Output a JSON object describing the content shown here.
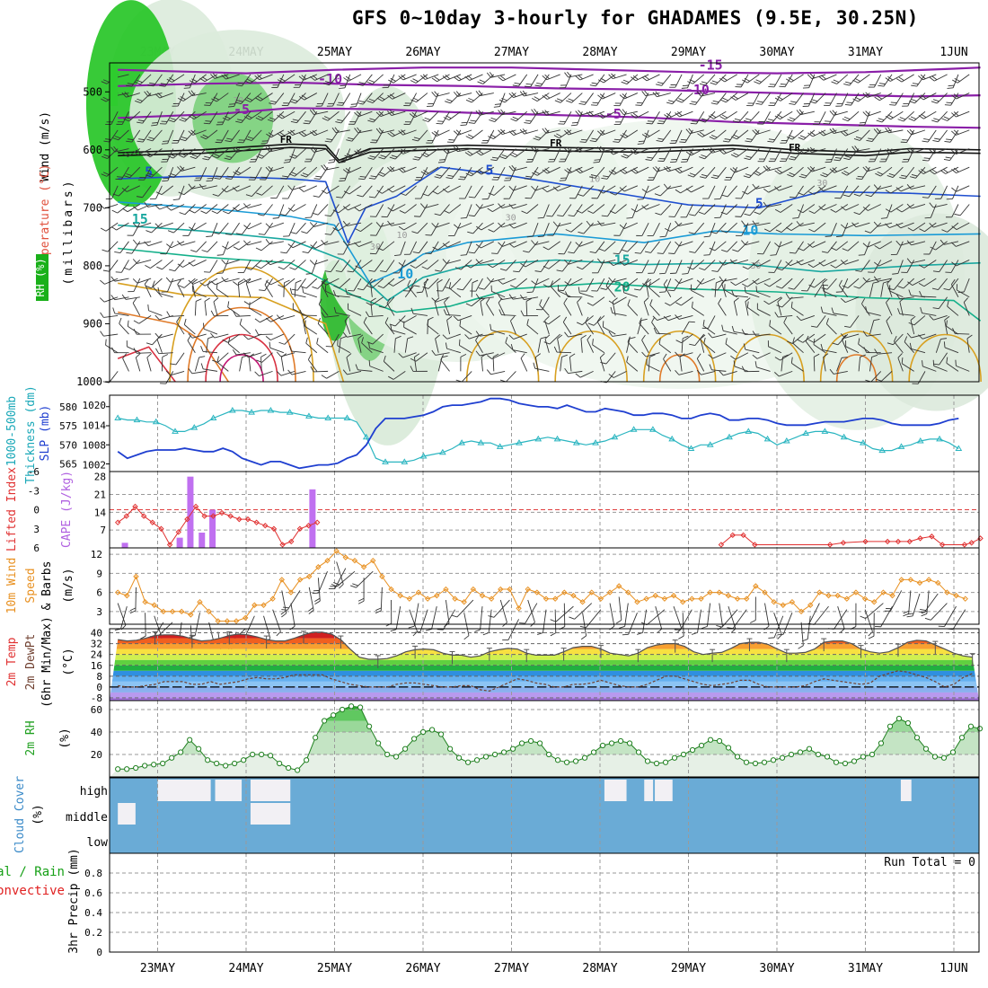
{
  "title": "GFS 0~10day 3-hourly for GHADAMES (9.5E, 30.25N)",
  "chart_data": {
    "type": "meteogram",
    "days": [
      "23MAY",
      "24MAY",
      "25MAY",
      "26MAY",
      "27MAY",
      "28MAY",
      "29MAY",
      "30MAY",
      "31MAY",
      "1JUN"
    ],
    "xlim_days": [
      -0.45,
      9.3
    ],
    "panels": [
      {
        "id": "upper_air",
        "ylabel_parts": [
          "RH (%)",
          "Temperature (°C)",
          "Wind (m/s)"
        ],
        "ylabel_colors": [
          "#2e8b2e",
          "#e0503c",
          "#000000"
        ],
        "axis_label": "(millibars)",
        "ylim": [
          1000,
          450
        ],
        "yticks": [
          500,
          600,
          700,
          800,
          900,
          1000
        ],
        "contour_labels": [
          {
            "text": "-15",
            "day": 6.25,
            "p": 462,
            "color": "#8a1fa8"
          },
          {
            "text": "-10",
            "day": 1.95,
            "p": 486,
            "color": "#8a1fa8"
          },
          {
            "text": "-10",
            "day": 6.1,
            "p": 504,
            "color": "#8a1fa8"
          },
          {
            "text": "-5",
            "day": 0.95,
            "p": 538,
            "color": "#8a1fa8"
          },
          {
            "text": "-5",
            "day": 5.15,
            "p": 546,
            "color": "#8a1fa8"
          },
          {
            "text": "FR",
            "day": 1.45,
            "p": 588,
            "color": "#000000"
          },
          {
            "text": "FR",
            "day": 4.5,
            "p": 594,
            "color": "#000000"
          },
          {
            "text": "FR",
            "day": 7.2,
            "p": 602,
            "color": "#000000"
          },
          {
            "text": "5",
            "day": -0.1,
            "p": 646,
            "color": "#1f4fd0"
          },
          {
            "text": "5",
            "day": 3.75,
            "p": 643,
            "color": "#1f4fd0"
          },
          {
            "text": "5",
            "day": 6.8,
            "p": 700,
            "color": "#1f4fd0"
          },
          {
            "text": "10",
            "day": 6.7,
            "p": 747,
            "color": "#1a9bd6"
          },
          {
            "text": "10",
            "day": 2.8,
            "p": 822,
            "color": "#1a9bd6"
          },
          {
            "text": "15",
            "day": -0.2,
            "p": 727,
            "color": "#1aa8a0"
          },
          {
            "text": "15",
            "day": 5.25,
            "p": 798,
            "color": "#1aa8a0"
          },
          {
            "text": "20",
            "day": 5.25,
            "p": 844,
            "color": "#14b08a"
          }
        ],
        "rh_labels": [
          {
            "text": "30",
            "day": 0.85,
            "p": 520
          },
          {
            "text": "30",
            "day": 7.45,
            "p": 662
          },
          {
            "text": "10",
            "day": 4.88,
            "p": 655
          },
          {
            "text": "30",
            "day": 3.93,
            "p": 722
          },
          {
            "text": "10",
            "day": 2.7,
            "p": 752
          },
          {
            "text": "30",
            "day": 2.4,
            "p": 772
          },
          {
            "text": "30",
            "day": 6.7,
            "p": 805
          }
        ]
      },
      {
        "id": "thickness_slp",
        "ylabel_parts": [
          "1000-500mb",
          "Thickness (dm)",
          "SLP (mb)"
        ],
        "left_ticks": [
          565,
          570,
          575,
          580
        ],
        "left_lim": [
          563,
          583
        ],
        "right_ticks": [
          1002,
          1008,
          1014,
          1020
        ],
        "right_lim": [
          1000,
          1023
        ],
        "thickness_dm": [
          577,
          576.5,
          576.5,
          576,
          576,
          575,
          573.5,
          573.5,
          574.5,
          575.5,
          577,
          578,
          579,
          579,
          578.5,
          579,
          579,
          578.5,
          578.5,
          578,
          577.5,
          577,
          577,
          577,
          577,
          576,
          572,
          566.5,
          565.5,
          565.5,
          565.5,
          566,
          567,
          567.5,
          568,
          569,
          570.5,
          571,
          570.5,
          570.5,
          569.5,
          570,
          570.5,
          571,
          571.5,
          572,
          571.5,
          571,
          570.5,
          570,
          570.5,
          571,
          572,
          573,
          574,
          574,
          574,
          572.5,
          571.5,
          570,
          569,
          570,
          570,
          571,
          572,
          573,
          573.5,
          573,
          571.5,
          570,
          571,
          572,
          573,
          573.5,
          573.5,
          573,
          572,
          571,
          570.5,
          569,
          568.5,
          568.5,
          569.5,
          570,
          571,
          571.5,
          571.5,
          570.5,
          569
        ],
        "slp_mb": [
          1006,
          1004,
          1005,
          1006,
          1006.5,
          1006.5,
          1006.5,
          1007,
          1006.5,
          1006,
          1006,
          1007,
          1006,
          1004,
          1003,
          1002,
          1003,
          1003,
          1002,
          1001,
          1001.5,
          1002,
          1002,
          1002.5,
          1004,
          1005,
          1008,
          1013,
          1016,
          1016,
          1016,
          1016.5,
          1017,
          1018,
          1019.5,
          1020,
          1020,
          1020.5,
          1021,
          1022,
          1022,
          1021.5,
          1020.5,
          1020,
          1019.5,
          1019.5,
          1019,
          1020,
          1019,
          1018,
          1018,
          1019,
          1018.5,
          1018,
          1017,
          1017,
          1017.5,
          1017.5,
          1017,
          1016,
          1016,
          1017,
          1017.5,
          1017,
          1015.5,
          1015.5,
          1016,
          1016,
          1015.5,
          1014.5,
          1014,
          1014,
          1014,
          1014.5,
          1015,
          1015,
          1015,
          1015.5,
          1016,
          1016,
          1015.5,
          1014.5,
          1014,
          1014,
          1014,
          1014,
          1014.5,
          1015.5,
          1016
        ]
      },
      {
        "id": "cape_li",
        "ylabel_parts": [
          "Lifted Index",
          "CAPE (J/kg)"
        ],
        "left_ticks": [
          6,
          3,
          0,
          -3,
          -6
        ],
        "left_lim": [
          6,
          -6
        ],
        "right_ticks": [
          7,
          14,
          21,
          28
        ],
        "right_lim": [
          0,
          30
        ],
        "cape": [
          {
            "day": -0.37,
            "value": 2
          },
          {
            "day": 0.25,
            "value": 4
          },
          {
            "day": 0.37,
            "value": 28
          },
          {
            "day": 0.5,
            "value": 6
          },
          {
            "day": 0.62,
            "value": 15
          },
          {
            "day": 1.75,
            "value": 23
          }
        ],
        "lifted_index": [
          2,
          1,
          -0.5,
          1,
          2,
          3,
          5.5,
          3.5,
          1.5,
          -0.5,
          1,
          1,
          0.5,
          1,
          1.5,
          1.5,
          2,
          2.5,
          3,
          5.5,
          5,
          3,
          2.5,
          2
        ],
        "lifted_index_tail": [
          {
            "day": 6.37,
            "value": 5.5
          },
          {
            "day": 6.5,
            "value": 4
          },
          {
            "day": 6.62,
            "value": 4
          },
          {
            "day": 6.75,
            "value": 5.5
          },
          {
            "day": 7.6,
            "value": 5.5
          },
          {
            "day": 7.75,
            "value": 5.2
          },
          {
            "day": 8.0,
            "value": 5
          },
          {
            "day": 8.25,
            "value": 5
          },
          {
            "day": 8.37,
            "value": 5
          },
          {
            "day": 8.5,
            "value": 5
          },
          {
            "day": 8.62,
            "value": 4.5
          },
          {
            "day": 8.75,
            "value": 4.2
          },
          {
            "day": 8.87,
            "value": 5.5
          },
          {
            "day": 9.12,
            "value": 5.5
          },
          {
            "day": 9.2,
            "value": 5.2
          },
          {
            "day": 9.3,
            "value": 4.5
          }
        ]
      },
      {
        "id": "wind10m",
        "ylabel_parts": [
          "10m Wind",
          "Speed",
          "& Barbs"
        ],
        "units": "(m/s)",
        "yticks": [
          3,
          6,
          9,
          12
        ],
        "ylim": [
          1,
          13
        ],
        "speed_ms": [
          6,
          5.5,
          8.5,
          4.5,
          4,
          3,
          3,
          3,
          2.5,
          4.5,
          3,
          1.5,
          1.5,
          1.5,
          2,
          4,
          4,
          5,
          8,
          6,
          8,
          8.5,
          10,
          11,
          12.5,
          11.5,
          11,
          10,
          11,
          8.5,
          6.5,
          5.5,
          5,
          6,
          5,
          5.5,
          6.5,
          5,
          4.5,
          6.5,
          5.5,
          5,
          6.5,
          6.5,
          3.5,
          6.5,
          6,
          5,
          5,
          6,
          5.5,
          4.5,
          6,
          5,
          6,
          7,
          6,
          4.5,
          5,
          5.5,
          5,
          5.5,
          4.5,
          5,
          5,
          6,
          6,
          5.5,
          5,
          5,
          7,
          6,
          4.5,
          4,
          4.5,
          3,
          4,
          6,
          5.5,
          5.5,
          5,
          6,
          5,
          4.5,
          6,
          5.5,
          8,
          8,
          7.5,
          8,
          7.5,
          6,
          5.5,
          5
        ]
      },
      {
        "id": "temp2m",
        "ylabel_parts": [
          "2m Temp",
          "2m DewPt",
          "(6hr Min/Max)"
        ],
        "units": "(°C)",
        "yticks": [
          -8,
          0,
          8,
          16,
          24,
          32,
          40
        ],
        "ylim": [
          -10,
          43
        ],
        "temp_c": [
          35,
          34,
          34.5,
          36,
          38,
          38.5,
          38.5,
          37.5,
          35.5,
          34,
          34.5,
          36,
          38,
          39,
          38.5,
          37,
          35,
          34,
          34,
          36,
          38.5,
          40.5,
          40.5,
          39,
          35,
          28,
          22,
          20.5,
          20.5,
          21,
          23,
          26,
          27.5,
          28,
          27.5,
          25,
          23.5,
          23.5,
          22,
          23,
          26,
          27.5,
          28.5,
          28,
          25,
          23.5,
          23.5,
          23.5,
          26,
          29,
          30,
          30,
          28,
          25,
          24,
          23,
          25,
          29,
          31,
          32,
          32,
          30,
          26,
          24,
          25,
          25.5,
          28.5,
          32,
          33,
          33,
          31.5,
          28,
          25,
          25,
          25.5,
          28,
          33,
          34,
          34,
          32,
          28,
          26,
          25,
          26,
          29,
          33,
          34.5,
          34,
          31,
          28,
          25,
          23,
          22
        ],
        "dewpoint_c": [
          1,
          0,
          0,
          1,
          2,
          4,
          4,
          4,
          2,
          2,
          4,
          2,
          3,
          4,
          6,
          7,
          6,
          6,
          7,
          9,
          9,
          9,
          9,
          6,
          4,
          2,
          1,
          0,
          0,
          0,
          2,
          3,
          3,
          2,
          1,
          0,
          0,
          1,
          1,
          -2,
          -3,
          0,
          3,
          6,
          5,
          3,
          2,
          0,
          0,
          2,
          2,
          3,
          5,
          3,
          1,
          0,
          0,
          2,
          5,
          8,
          8,
          6,
          4,
          2,
          1,
          2,
          3,
          5,
          5,
          2,
          0,
          0,
          0,
          0,
          1,
          4,
          6,
          5,
          4,
          3,
          2,
          3,
          8,
          10,
          12,
          11,
          9,
          7,
          4,
          0,
          2,
          7,
          10
        ]
      },
      {
        "id": "rh2m",
        "ylabel": "2m RH",
        "units": "(%)",
        "yticks": [
          20,
          40,
          60
        ],
        "ylim": [
          0,
          68
        ],
        "rh_pct": [
          7,
          7,
          8,
          10,
          11,
          12,
          17,
          22,
          33,
          25,
          15,
          12,
          10,
          12,
          15,
          20,
          20,
          19,
          12,
          8,
          6,
          15,
          35,
          50,
          55,
          60,
          63,
          62,
          45,
          30,
          20,
          18,
          25,
          34,
          40,
          42,
          38,
          25,
          17,
          13,
          15,
          18,
          20,
          22,
          25,
          30,
          32,
          30,
          20,
          15,
          13,
          14,
          17,
          22,
          28,
          30,
          32,
          30,
          22,
          14,
          12,
          13,
          17,
          20,
          24,
          28,
          33,
          32,
          26,
          18,
          13,
          12,
          13,
          15,
          17,
          20,
          22,
          25,
          20,
          18,
          13,
          12,
          14,
          18,
          20,
          30,
          45,
          52,
          48,
          35,
          25,
          18,
          17,
          22,
          35,
          45,
          43
        ]
      },
      {
        "id": "cloud_cover",
        "ylabel_parts": [
          "Cloud Cover",
          "(%)"
        ],
        "levels": [
          "high",
          "middle",
          "low"
        ],
        "clear_gaps": [
          {
            "level": "high",
            "day": 0.0,
            "width": 0.6
          },
          {
            "level": "high",
            "day": 0.65,
            "width": 0.3
          },
          {
            "level": "high",
            "day": 1.05,
            "width": 0.45
          },
          {
            "level": "middle",
            "day": -0.45,
            "width": 0.2
          },
          {
            "level": "middle",
            "day": 1.05,
            "width": 0.45
          },
          {
            "level": "high",
            "day": 5.05,
            "width": 0.25
          },
          {
            "level": "high",
            "day": 5.5,
            "width": 0.1
          },
          {
            "level": "high",
            "day": 5.62,
            "width": 0.2
          },
          {
            "level": "high",
            "day": 8.4,
            "width": 0.12
          }
        ]
      },
      {
        "id": "precip",
        "ylabel_parts": [
          "Total / Rain",
          "Convective",
          "3hr Precip (mm)"
        ],
        "ylabel_colors": [
          "#16a016",
          "#e02020",
          "#000000"
        ],
        "yticks": [
          0,
          0.2,
          0.4,
          0.6,
          0.8
        ],
        "ylim": [
          0,
          1.0
        ],
        "run_total": "Run Total = 0"
      }
    ]
  }
}
